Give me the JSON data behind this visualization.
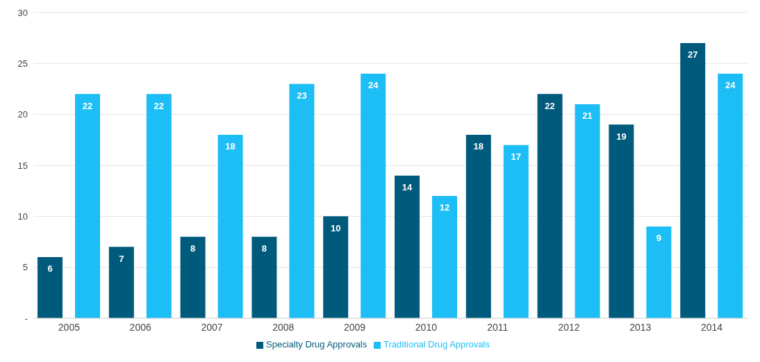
{
  "chart_data": {
    "type": "bar",
    "categories": [
      "2005",
      "2006",
      "2007",
      "2008",
      "2009",
      "2010",
      "2011",
      "2012",
      "2013",
      "2014"
    ],
    "series": [
      {
        "name": "Specialty Drug Approvals",
        "color": "#005a7c",
        "values": [
          6,
          7,
          8,
          8,
          10,
          14,
          18,
          22,
          19,
          27
        ]
      },
      {
        "name": "Traditional Drug Approvals",
        "color": "#1dbdf5",
        "values": [
          22,
          22,
          18,
          23,
          24,
          12,
          17,
          21,
          9,
          24
        ]
      }
    ],
    "ylim": [
      0,
      30
    ],
    "yticks": [
      {
        "value": 0,
        "label": "-"
      },
      5,
      10,
      15,
      20,
      25,
      30
    ],
    "grid": "y",
    "legend": "bottom",
    "data_labels": true
  }
}
